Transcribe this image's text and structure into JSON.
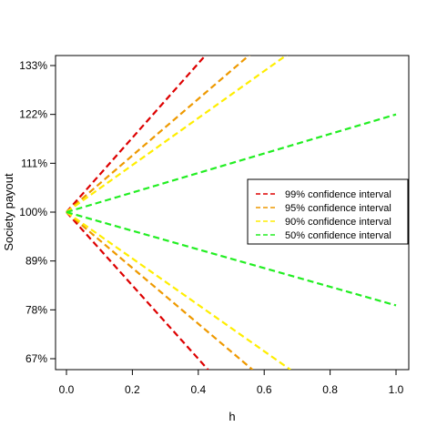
{
  "chart_data": {
    "type": "line",
    "title": "",
    "xlabel": "h",
    "ylabel": "Society payout",
    "xlim": [
      0,
      1
    ],
    "ylim": [
      0.65,
      1.36
    ],
    "x_ticks": [
      {
        "value": 0.0,
        "label": "0.0"
      },
      {
        "value": 0.2,
        "label": "0.2"
      },
      {
        "value": 0.4,
        "label": "0.4"
      },
      {
        "value": 0.6,
        "label": "0.6"
      },
      {
        "value": 0.8,
        "label": "0.8"
      },
      {
        "value": 1.0,
        "label": "1.0"
      }
    ],
    "y_ticks": [
      {
        "value": 0.67,
        "label": "67%"
      },
      {
        "value": 0.78,
        "label": "78%"
      },
      {
        "value": 0.89,
        "label": "89%"
      },
      {
        "value": 1.0,
        "label": "100%"
      },
      {
        "value": 1.11,
        "label": "111%"
      },
      {
        "value": 1.22,
        "label": "122%"
      },
      {
        "value": 1.33,
        "label": "133%"
      }
    ],
    "grid": false,
    "legend_position": "right",
    "series": [
      {
        "name": "99% confidence interval",
        "color": "#dd0000",
        "upper": [
          [
            0,
            1.0
          ],
          [
            0.43,
            1.36
          ]
        ],
        "lower": [
          [
            0,
            1.0
          ],
          [
            0.43,
            0.645
          ]
        ]
      },
      {
        "name": "95% confidence interval",
        "color": "#ee9900",
        "upper": [
          [
            0,
            1.0
          ],
          [
            0.565,
            1.36
          ]
        ],
        "lower": [
          [
            0,
            1.0
          ],
          [
            0.565,
            0.645
          ]
        ]
      },
      {
        "name": "90% confidence interval",
        "color": "#ffee00",
        "upper": [
          [
            0,
            1.0
          ],
          [
            0.68,
            1.36
          ]
        ],
        "lower": [
          [
            0,
            1.0
          ],
          [
            0.68,
            0.645
          ]
        ]
      },
      {
        "name": "50% confidence interval",
        "color": "#22ee22",
        "upper": [
          [
            0,
            1.0
          ],
          [
            1.0,
            1.22
          ]
        ],
        "lower": [
          [
            0,
            1.0
          ],
          [
            1.0,
            0.79
          ]
        ]
      }
    ]
  }
}
